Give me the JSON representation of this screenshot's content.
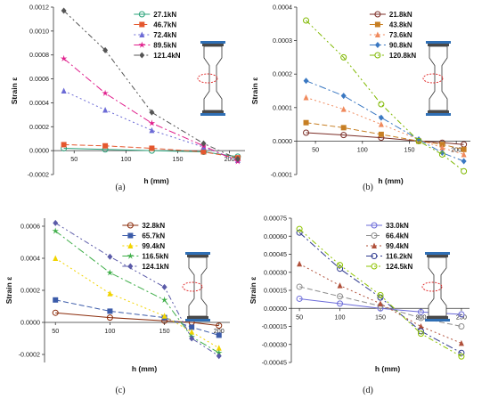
{
  "figure": {
    "panels": [
      {
        "label": "(a)",
        "chart_data": {
          "type": "line",
          "xlabel": "h (mm)",
          "ylabel": "Strain ε",
          "xlim": [
            30,
            215
          ],
          "ylim": [
            -0.0002,
            0.0012
          ],
          "xticks": [
            50,
            100,
            150,
            200
          ],
          "xtick_labels": [
            "50",
            "100",
            "150",
            "200"
          ],
          "yticks": [
            -0.0002,
            0,
            0.0002,
            0.0004,
            0.0006,
            0.0008,
            0.001,
            0.0012
          ],
          "ytick_labels": [
            "-0.0002",
            "0.0000",
            "0.0002",
            "0.0004",
            "0.0006",
            "0.0008",
            "0.0010",
            "0.0012"
          ],
          "legend_position": "top-center",
          "x": [
            40,
            80,
            125,
            175,
            208
          ],
          "series": [
            {
              "name": "27.1kN",
              "color": "#2aa37a",
              "marker": "circle",
              "dash": "",
              "values": [
                2e-05,
                1e-05,
                0.0,
                -1e-05,
                -5e-05
              ]
            },
            {
              "name": "46.7kN",
              "color": "#e4572e",
              "marker": "square",
              "dash": "6,3",
              "values": [
                5e-05,
                4e-05,
                2e-05,
                -1e-05,
                -6e-05
              ]
            },
            {
              "name": "72.4kN",
              "color": "#6c6bd6",
              "marker": "triangle",
              "dash": "2,3",
              "values": [
                0.0005,
                0.00034,
                0.00017,
                3e-05,
                -8e-05
              ]
            },
            {
              "name": "89.5kN",
              "color": "#e01e8c",
              "marker": "star",
              "dash": "8,3,2,3",
              "values": [
                0.00077,
                0.00048,
                0.00023,
                4e-05,
                -9e-05
              ]
            },
            {
              "name": "121.4kN",
              "color": "#555555",
              "marker": "diamond",
              "dash": "6,3,2,3,2,3",
              "values": [
                0.00117,
                0.00084,
                0.00032,
                6e-05,
                -7e-05
              ]
            }
          ]
        }
      },
      {
        "label": "(b)",
        "chart_data": {
          "type": "line",
          "xlabel": "h (mm)",
          "ylabel": "Strain ε",
          "xlim": [
            30,
            215
          ],
          "ylim": [
            -0.0001,
            0.0004
          ],
          "xticks": [
            50,
            100,
            150,
            200
          ],
          "xtick_labels": [
            "50",
            "100",
            "150",
            "200"
          ],
          "yticks": [
            -0.0001,
            0,
            0.0001,
            0.0002,
            0.0003,
            0.0004
          ],
          "ytick_labels": [
            "-0.0001",
            "0.0000",
            "0.0001",
            "0.0002",
            "0.0003",
            "0.0004"
          ],
          "legend_position": "top-center",
          "x": [
            40,
            80,
            120,
            160,
            185,
            208
          ],
          "series": [
            {
              "name": "21.8kN",
              "color": "#7b2d26",
              "marker": "circle",
              "dash": "",
              "values": [
                2.5e-05,
                1.8e-05,
                1e-05,
                0.0,
                -5e-06,
                -1e-05
              ]
            },
            {
              "name": "43.8kN",
              "color": "#c77f24",
              "marker": "square",
              "dash": "6,3",
              "values": [
                5.5e-05,
                4e-05,
                2e-05,
                0.0,
                -1e-05,
                -2.5e-05
              ]
            },
            {
              "name": "73.6kN",
              "color": "#f08a5d",
              "marker": "triangle",
              "dash": "2,3",
              "values": [
                0.00013,
                9.5e-05,
                5e-05,
                5e-06,
                -2e-05,
                -4e-05
              ]
            },
            {
              "name": "90.8kN",
              "color": "#3a78c2",
              "marker": "diamond",
              "dash": "8,3,2,3",
              "values": [
                0.00018,
                0.000135,
                7e-05,
                5e-06,
                -3.5e-05,
                -6e-05
              ]
            },
            {
              "name": "120.8kN",
              "color": "#7fb800",
              "marker": "circle",
              "dash": "6,3,2,3,2,3",
              "values": [
                0.00036,
                0.00025,
                0.00011,
                0.0,
                -4e-05,
                -9e-05
              ]
            }
          ]
        }
      },
      {
        "label": "(c)",
        "chart_data": {
          "type": "line",
          "xlabel": "h (mm)",
          "ylabel": "Strain ε",
          "xlim": [
            40,
            210
          ],
          "ylim": [
            -0.00025,
            0.00065
          ],
          "xticks": [
            50,
            100,
            150,
            200
          ],
          "xtick_labels": [
            "50",
            "100",
            "150",
            "200"
          ],
          "yticks": [
            -0.0002,
            0,
            0.0002,
            0.0004,
            0.0006
          ],
          "ytick_labels": [
            "-0.0002",
            "0.0000",
            "0.0002",
            "0.0004",
            "0.0006"
          ],
          "legend_position": "top-center",
          "x": [
            50,
            100,
            150,
            175,
            200
          ],
          "series": [
            {
              "name": "32.8kN",
              "color": "#8b2c0b",
              "marker": "circle",
              "dash": "",
              "values": [
                6e-05,
                3e-05,
                1e-05,
                0.0,
                -2e-05
              ]
            },
            {
              "name": "65.7kN",
              "color": "#3b5ba9",
              "marker": "square",
              "dash": "6,3",
              "values": [
                0.00014,
                7e-05,
                3e-05,
                -3e-05,
                -8e-05
              ]
            },
            {
              "name": "99.4kN",
              "color": "#f2d400",
              "marker": "triangle",
              "dash": "2,3",
              "values": [
                0.0004,
                0.00018,
                4e-05,
                -6e-05,
                -0.00016
              ]
            },
            {
              "name": "116.5kN",
              "color": "#3fae49",
              "marker": "star",
              "dash": "8,3,2,3",
              "values": [
                0.00057,
                0.00031,
                0.00014,
                -9e-05,
                -0.00019
              ]
            },
            {
              "name": "124.1kN",
              "color": "#5a5aa8",
              "marker": "diamond",
              "dash": "6,3,2,3,2,3",
              "values": [
                0.00062,
                0.00041,
                0.00022,
                -0.0001,
                -0.00021
              ]
            }
          ]
        }
      },
      {
        "label": "(d)",
        "chart_data": {
          "type": "line",
          "xlabel": "h (mm)",
          "ylabel": "Strain ε",
          "xlim": [
            40,
            260
          ],
          "ylim": [
            -0.00045,
            0.00075
          ],
          "xticks": [
            50,
            100,
            150,
            200,
            250
          ],
          "xtick_labels": [
            "50",
            "100",
            "150",
            "200",
            "250"
          ],
          "yticks": [
            -0.00045,
            -0.0003,
            -0.00015,
            0,
            0.00015,
            0.0003,
            0.00045,
            0.0006,
            0.00075
          ],
          "ytick_labels": [
            "-0.00045",
            "-0.00030",
            "-0.00015",
            "0.00000",
            "0.00015",
            "0.00030",
            "0.00045",
            "0.00060",
            "0.00075"
          ],
          "legend_position": "top-center",
          "x": [
            50,
            100,
            150,
            200,
            250
          ],
          "series": [
            {
              "name": "33.0kN",
              "color": "#6b6bd9",
              "marker": "circle",
              "dash": "",
              "values": [
                8e-05,
                4e-05,
                0.0,
                -3e-05,
                -5e-05
              ]
            },
            {
              "name": "66.4kN",
              "color": "#8c8c8c",
              "marker": "circle",
              "dash": "6,3",
              "values": [
                0.00018,
                0.0001,
                2e-05,
                -8e-05,
                -0.00015
              ]
            },
            {
              "name": "99.4kN",
              "color": "#b0503a",
              "marker": "triangle",
              "dash": "2,3",
              "values": [
                0.00037,
                0.00019,
                4e-05,
                -0.00015,
                -0.00029
              ]
            },
            {
              "name": "116.2kN",
              "color": "#2f3a8f",
              "marker": "circle",
              "dash": "8,3,2,3",
              "values": [
                0.00063,
                0.00033,
                9e-05,
                -0.00019,
                -0.00037
              ]
            },
            {
              "name": "124.5kN",
              "color": "#8fc400",
              "marker": "circle",
              "dash": "6,3,2,3,2,3",
              "values": [
                0.00066,
                0.00036,
                0.00011,
                -0.00021,
                -0.0004
              ]
            }
          ]
        }
      }
    ]
  }
}
